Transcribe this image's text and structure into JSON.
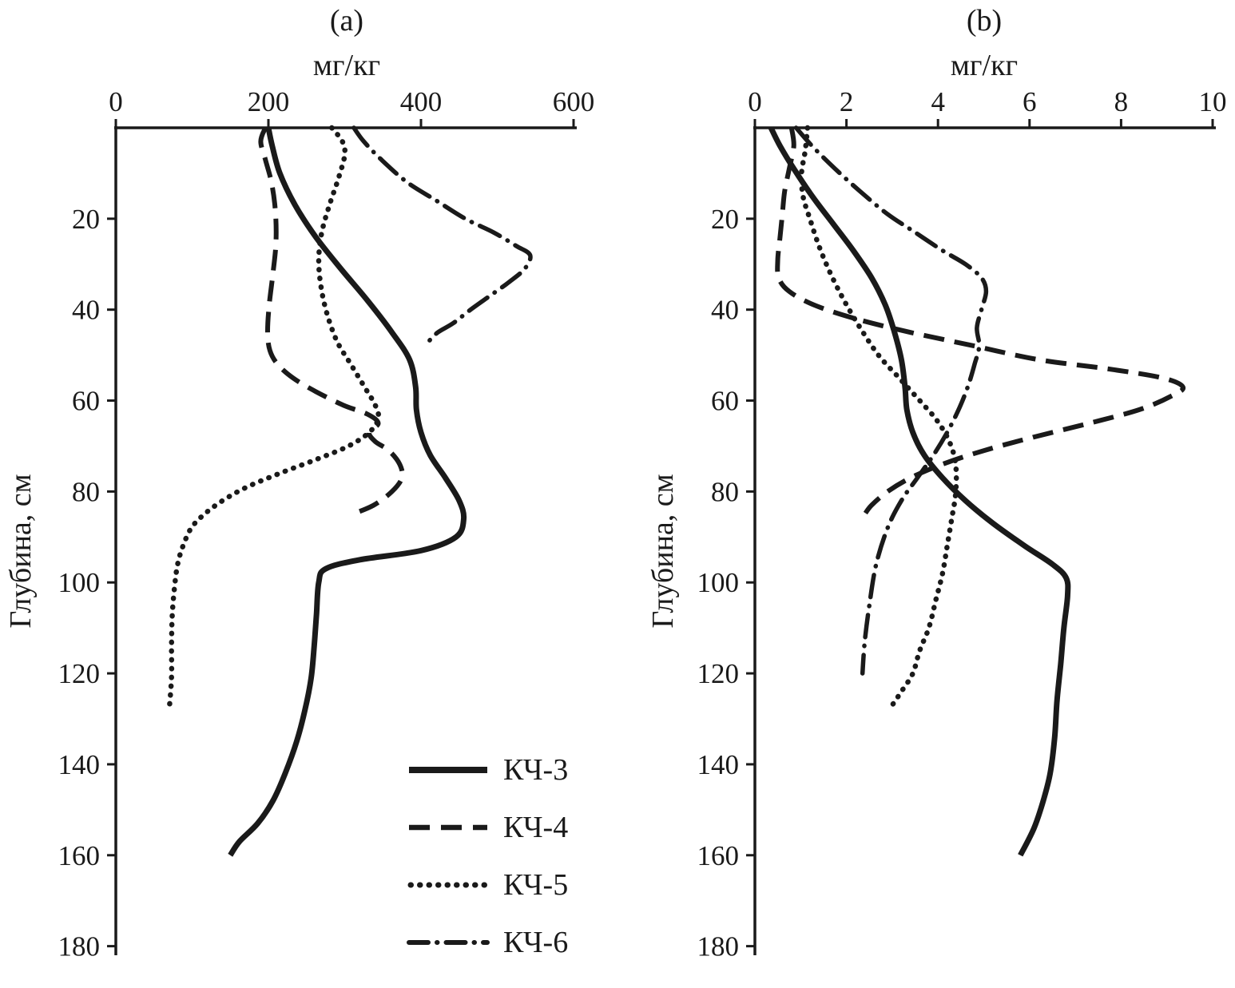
{
  "figure": {
    "panels": [
      {
        "title": "(a)"
      },
      {
        "title": "(b)"
      }
    ]
  },
  "legend": {
    "items": [
      {
        "label": "КЧ-3",
        "style": "solid"
      },
      {
        "label": "КЧ-4",
        "style": "dashed"
      },
      {
        "label": "КЧ-5",
        "style": "dotted"
      },
      {
        "label": "КЧ-6",
        "style": "dashdot"
      }
    ]
  },
  "chart_data": [
    {
      "type": "line",
      "title": "(a)",
      "xlabel": "мг/кг",
      "ylabel": "Глубина, см",
      "x_axis_position": "top",
      "y_inverted": true,
      "grid": false,
      "xlim": [
        0,
        600
      ],
      "xticks": [
        0,
        200,
        400,
        600
      ],
      "ylim": [
        0,
        182
      ],
      "yticks": [
        20,
        40,
        60,
        80,
        100,
        120,
        140,
        160,
        180
      ],
      "series": [
        {
          "name": "КЧ-3",
          "style": "solid",
          "points": [
            [
              200,
              0
            ],
            [
              205,
              4
            ],
            [
              215,
              10
            ],
            [
              235,
              17
            ],
            [
              262,
              24
            ],
            [
              295,
              31
            ],
            [
              330,
              38
            ],
            [
              362,
              45
            ],
            [
              385,
              51
            ],
            [
              393,
              57
            ],
            [
              394,
              62
            ],
            [
              400,
              67
            ],
            [
              412,
              72
            ],
            [
              432,
              77
            ],
            [
              450,
              82
            ],
            [
              456,
              86
            ],
            [
              446,
              90
            ],
            [
              400,
              93
            ],
            [
              320,
              95
            ],
            [
              275,
              97
            ],
            [
              266,
              100
            ],
            [
              263,
              107
            ],
            [
              260,
              114
            ],
            [
              256,
              121
            ],
            [
              248,
              128
            ],
            [
              237,
              135
            ],
            [
              222,
              142
            ],
            [
              206,
              148
            ],
            [
              186,
              153
            ],
            [
              162,
              157
            ],
            [
              150,
              160
            ]
          ]
        },
        {
          "name": "КЧ-4",
          "style": "dashed",
          "points": [
            [
              196,
              0
            ],
            [
              190,
              3
            ],
            [
              196,
              7
            ],
            [
              204,
              12
            ],
            [
              209,
              18
            ],
            [
              210,
              25
            ],
            [
              206,
              32
            ],
            [
              201,
              39
            ],
            [
              199,
              45
            ],
            [
              202,
              49
            ],
            [
              212,
              52
            ],
            [
              232,
              55
            ],
            [
              262,
              58
            ],
            [
              298,
              61
            ],
            [
              330,
              63
            ],
            [
              344,
              65
            ],
            [
              332,
              67
            ],
            [
              340,
              69
            ],
            [
              358,
              71
            ],
            [
              372,
              74
            ],
            [
              375,
              77
            ],
            [
              362,
              80
            ],
            [
              338,
              83
            ],
            [
              310,
              85
            ]
          ]
        },
        {
          "name": "КЧ-5",
          "style": "dotted",
          "points": [
            [
              283,
              0
            ],
            [
              297,
              3
            ],
            [
              300,
              6
            ],
            [
              292,
              11
            ],
            [
              280,
              17
            ],
            [
              270,
              23
            ],
            [
              266,
              29
            ],
            [
              269,
              35
            ],
            [
              277,
              41
            ],
            [
              290,
              47
            ],
            [
              308,
              52
            ],
            [
              326,
              57
            ],
            [
              340,
              61
            ],
            [
              344,
              64
            ],
            [
              332,
              67
            ],
            [
              305,
              70
            ],
            [
              262,
              73
            ],
            [
              215,
              76
            ],
            [
              172,
              79
            ],
            [
              140,
              82
            ],
            [
              116,
              85
            ],
            [
              99,
              88
            ],
            [
              88,
              92
            ],
            [
              81,
              96
            ],
            [
              77,
              101
            ],
            [
              74,
              107
            ],
            [
              73,
              114
            ],
            [
              73,
              121
            ],
            [
              70,
              128
            ]
          ]
        },
        {
          "name": "КЧ-6",
          "style": "dashdot",
          "points": [
            [
              312,
              0
            ],
            [
              325,
              3
            ],
            [
              348,
              7
            ],
            [
              382,
              12
            ],
            [
              420,
              16
            ],
            [
              458,
              20
            ],
            [
              495,
              23
            ],
            [
              525,
              26
            ],
            [
              543,
              28
            ],
            [
              536,
              31
            ],
            [
              515,
              34
            ],
            [
              490,
              37
            ],
            [
              465,
              40
            ],
            [
              442,
              43
            ],
            [
              422,
              45
            ],
            [
              410,
              47
            ]
          ]
        }
      ]
    },
    {
      "type": "line",
      "title": "(b)",
      "xlabel": "мг/кг",
      "ylabel": "Глубина, см",
      "x_axis_position": "top",
      "y_inverted": true,
      "grid": false,
      "xlim": [
        0,
        10
      ],
      "xticks": [
        0,
        2,
        4,
        6,
        8,
        10
      ],
      "ylim": [
        0,
        182
      ],
      "yticks": [
        20,
        40,
        60,
        80,
        100,
        120,
        140,
        160,
        180
      ],
      "series": [
        {
          "name": "КЧ-3",
          "style": "solid",
          "points": [
            [
              0.35,
              0
            ],
            [
              0.55,
              4
            ],
            [
              0.85,
              9
            ],
            [
              1.25,
              15
            ],
            [
              1.7,
              21
            ],
            [
              2.15,
              27
            ],
            [
              2.55,
              33
            ],
            [
              2.85,
              39
            ],
            [
              3.05,
              45
            ],
            [
              3.2,
              51
            ],
            [
              3.28,
              57
            ],
            [
              3.32,
              62
            ],
            [
              3.45,
              67
            ],
            [
              3.7,
              72
            ],
            [
              4.1,
              77
            ],
            [
              4.6,
              82
            ],
            [
              5.2,
              87
            ],
            [
              5.9,
              92
            ],
            [
              6.5,
              96
            ],
            [
              6.8,
              99
            ],
            [
              6.83,
              103
            ],
            [
              6.75,
              110
            ],
            [
              6.68,
              118
            ],
            [
              6.6,
              126
            ],
            [
              6.55,
              134
            ],
            [
              6.45,
              142
            ],
            [
              6.3,
              148
            ],
            [
              6.1,
              154
            ],
            [
              5.8,
              160
            ]
          ]
        },
        {
          "name": "КЧ-4",
          "style": "dashed",
          "points": [
            [
              0.8,
              0
            ],
            [
              0.85,
              4
            ],
            [
              0.75,
              9
            ],
            [
              0.65,
              14
            ],
            [
              0.6,
              19
            ],
            [
              0.55,
              24
            ],
            [
              0.5,
              29
            ],
            [
              0.52,
              33
            ],
            [
              0.75,
              36
            ],
            [
              1.3,
              39
            ],
            [
              2.2,
              42
            ],
            [
              3.4,
              45
            ],
            [
              4.8,
              48
            ],
            [
              6.2,
              51
            ],
            [
              7.7,
              53
            ],
            [
              8.9,
              55
            ],
            [
              9.35,
              57
            ],
            [
              9.1,
              59
            ],
            [
              8.4,
              62
            ],
            [
              7.3,
              65
            ],
            [
              6.1,
              68
            ],
            [
              5.0,
              71
            ],
            [
              4.1,
              74
            ],
            [
              3.4,
              77
            ],
            [
              2.9,
              80
            ],
            [
              2.55,
              83
            ],
            [
              2.4,
              85
            ]
          ]
        },
        {
          "name": "КЧ-5",
          "style": "dotted",
          "points": [
            [
              1.15,
              0
            ],
            [
              1.1,
              5
            ],
            [
              1.02,
              10
            ],
            [
              1.05,
              15
            ],
            [
              1.2,
              20
            ],
            [
              1.4,
              26
            ],
            [
              1.65,
              32
            ],
            [
              1.95,
              38
            ],
            [
              2.3,
              44
            ],
            [
              2.7,
              50
            ],
            [
              3.15,
              55
            ],
            [
              3.6,
              60
            ],
            [
              3.95,
              64
            ],
            [
              4.2,
              68
            ],
            [
              4.35,
              72
            ],
            [
              4.4,
              76
            ],
            [
              4.38,
              81
            ],
            [
              4.3,
              86
            ],
            [
              4.2,
              92
            ],
            [
              4.1,
              98
            ],
            [
              3.95,
              104
            ],
            [
              3.8,
              110
            ],
            [
              3.6,
              115
            ],
            [
              3.45,
              120
            ],
            [
              3.2,
              124
            ],
            [
              3.0,
              127
            ]
          ]
        },
        {
          "name": "КЧ-6",
          "style": "dashdot",
          "points": [
            [
              0.9,
              0
            ],
            [
              1.25,
              4
            ],
            [
              1.75,
              9
            ],
            [
              2.3,
              14
            ],
            [
              2.9,
              19
            ],
            [
              3.5,
              23
            ],
            [
              4.1,
              27
            ],
            [
              4.6,
              30
            ],
            [
              4.95,
              33
            ],
            [
              5.05,
              36
            ],
            [
              4.95,
              40
            ],
            [
              4.85,
              44
            ],
            [
              4.9,
              48
            ],
            [
              4.8,
              52
            ],
            [
              4.65,
              57
            ],
            [
              4.45,
              62
            ],
            [
              4.2,
              67
            ],
            [
              3.9,
              72
            ],
            [
              3.55,
              77
            ],
            [
              3.2,
              82
            ],
            [
              2.9,
              88
            ],
            [
              2.65,
              96
            ],
            [
              2.5,
              105
            ],
            [
              2.4,
              113
            ],
            [
              2.35,
              120
            ]
          ]
        }
      ]
    }
  ]
}
